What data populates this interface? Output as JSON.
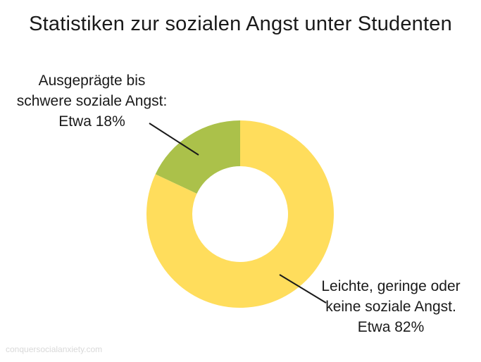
{
  "title": "Statistiken zur sozialen Angst unter Studenten",
  "watermark": "conquersocialanxiety.com",
  "chart_data": {
    "type": "pie",
    "variant": "donut",
    "slices": [
      {
        "value": 18,
        "color": "#abc14a",
        "label_lines": [
          "Ausgeprägte bis",
          "schwere soziale Angst:",
          "Etwa 18%"
        ]
      },
      {
        "value": 82,
        "color": "#ffdd5c",
        "label_lines": [
          "Leichte, geringe oder",
          "keine soziale Angst.",
          "Etwa 82%"
        ]
      }
    ]
  }
}
